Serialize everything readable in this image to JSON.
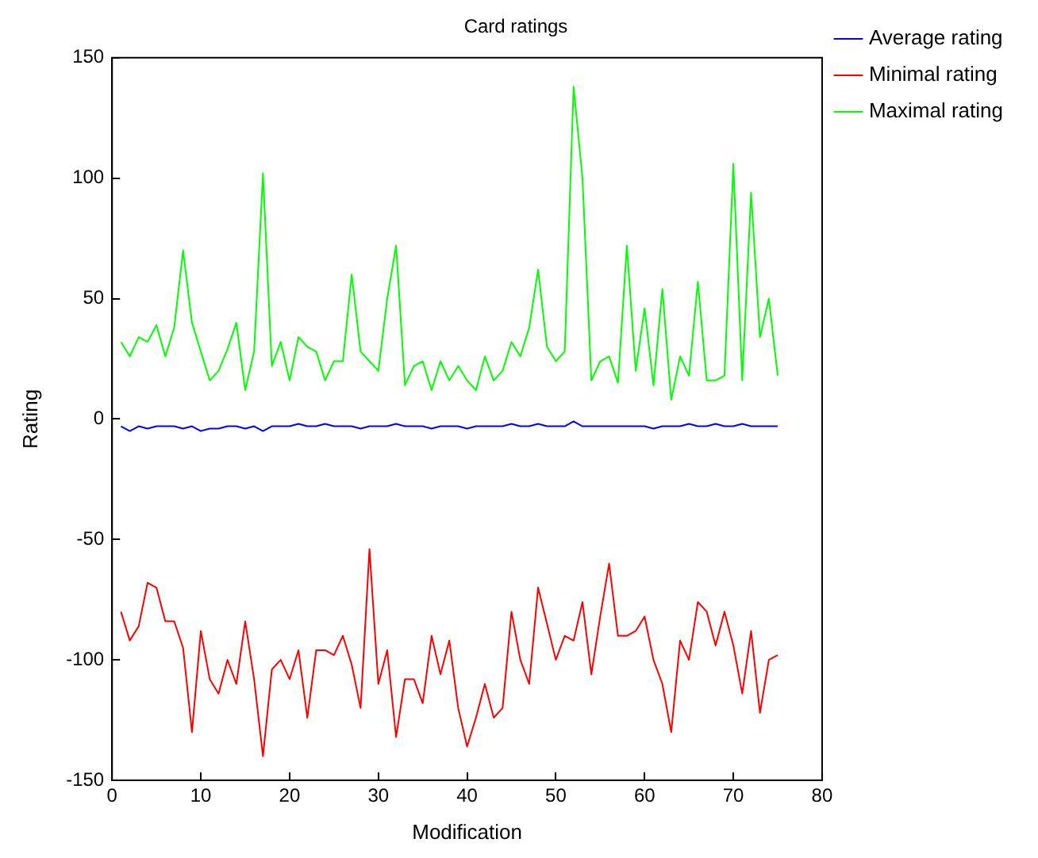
{
  "chart_data": {
    "type": "line",
    "title": "Card ratings",
    "xlabel": "Modification",
    "ylabel": "Rating",
    "x": [
      1,
      2,
      3,
      4,
      5,
      6,
      7,
      8,
      9,
      10,
      11,
      12,
      13,
      14,
      15,
      16,
      17,
      18,
      19,
      20,
      21,
      22,
      23,
      24,
      25,
      26,
      27,
      28,
      29,
      30,
      31,
      32,
      33,
      34,
      35,
      36,
      37,
      38,
      39,
      40,
      41,
      42,
      43,
      44,
      45,
      46,
      47,
      48,
      49,
      50,
      51,
      52,
      53,
      54,
      55,
      56,
      57,
      58,
      59,
      60,
      61,
      62,
      63,
      64,
      65,
      66,
      67,
      68,
      69,
      70,
      71,
      72,
      73,
      74,
      75
    ],
    "series": [
      {
        "name": "Average rating",
        "color": "#0000ff",
        "values": [
          -3,
          -5,
          -3,
          -4,
          -3,
          -3,
          -3,
          -4,
          -3,
          -5,
          -4,
          -4,
          -3,
          -3,
          -4,
          -3,
          -5,
          -3,
          -3,
          -3,
          -2,
          -3,
          -3,
          -2,
          -3,
          -3,
          -3,
          -4,
          -3,
          -3,
          -3,
          -2,
          -3,
          -3,
          -3,
          -4,
          -3,
          -3,
          -3,
          -4,
          -3,
          -3,
          -3,
          -3,
          -2,
          -3,
          -3,
          -2,
          -3,
          -3,
          -3,
          -1,
          -3,
          -3,
          -3,
          -3,
          -3,
          -3,
          -3,
          -3,
          -4,
          -3,
          -3,
          -3,
          -2,
          -3,
          -3,
          -2,
          -3,
          -3,
          -2,
          -3,
          -3,
          -3,
          -3
        ]
      },
      {
        "name": "Minimal rating",
        "color": "#ff0000",
        "values": [
          -80,
          -92,
          -86,
          -68,
          -70,
          -84,
          -84,
          -95,
          -130,
          -88,
          -108,
          -114,
          -100,
          -110,
          -84,
          -108,
          -140,
          -104,
          -100,
          -108,
          -96,
          -124,
          -96,
          -96,
          -98,
          -90,
          -102,
          -120,
          -54,
          -110,
          -96,
          -132,
          -108,
          -108,
          -118,
          -90,
          -106,
          -92,
          -120,
          -136,
          -124,
          -110,
          -124,
          -120,
          -80,
          -100,
          -110,
          -70,
          -85,
          -100,
          -90,
          -92,
          -76,
          -106,
          -82,
          -60,
          -90,
          -90,
          -88,
          -82,
          -100,
          -110,
          -130,
          -92,
          -100,
          -76,
          -80,
          -94,
          -80,
          -94,
          -114,
          -88,
          -122,
          -100,
          -98
        ]
      },
      {
        "name": "Maximal rating",
        "color": "#00ff00",
        "values": [
          32,
          26,
          34,
          32,
          39,
          26,
          38,
          70,
          40,
          28,
          16,
          20,
          29,
          40,
          12,
          28,
          102,
          22,
          32,
          16,
          34,
          30,
          28,
          16,
          24,
          24,
          60,
          28,
          24,
          20,
          50,
          72,
          14,
          22,
          24,
          12,
          24,
          16,
          22,
          16,
          12,
          26,
          16,
          20,
          32,
          26,
          38,
          62,
          30,
          24,
          28,
          138,
          100,
          16,
          24,
          26,
          15,
          72,
          20,
          46,
          14,
          54,
          8,
          26,
          18,
          57,
          16,
          16,
          18,
          106,
          16,
          94,
          34,
          50,
          18
        ]
      }
    ],
    "xlim": [
      0,
      80
    ],
    "xticks": [
      0,
      10,
      20,
      30,
      40,
      50,
      60,
      70,
      80
    ],
    "ylim": [
      -150,
      150
    ],
    "yticks": [
      -150,
      -100,
      -50,
      0,
      50,
      100,
      150
    ],
    "grid": false,
    "legend": "top right"
  }
}
